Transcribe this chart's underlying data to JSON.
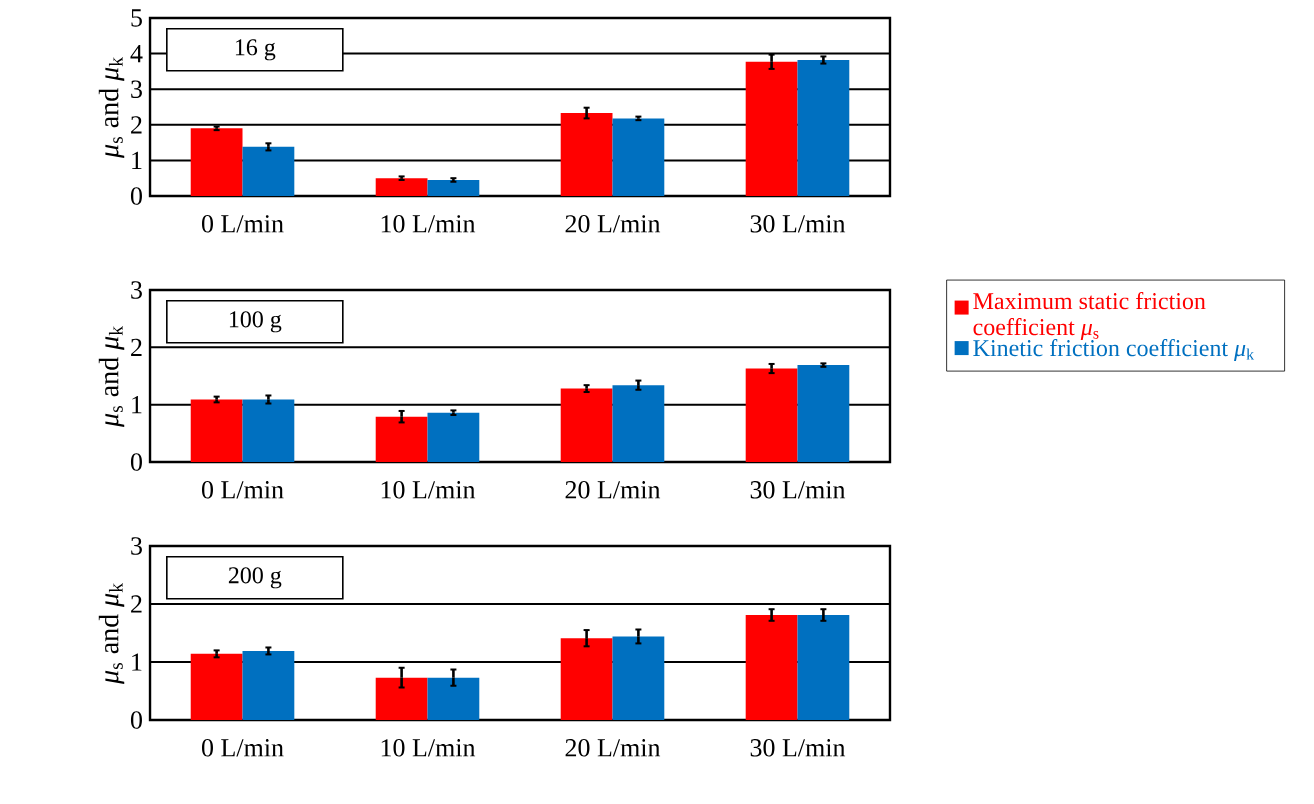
{
  "chart_data": [
    {
      "type": "bar",
      "categories": [
        "0 L/min",
        "10 L/min",
        "20 L/min",
        "30 L/min"
      ],
      "ylabel": "*μ*$_{s}$ and *μ*$_{k}$",
      "ylim": [
        0,
        5
      ],
      "yticks": [
        0,
        1,
        2,
        3,
        4,
        5
      ],
      "grid": "y",
      "annotations": [
        "16 g"
      ],
      "series": [
        {
          "color": "#ff0000",
          "values": [
            1.9,
            0.5,
            2.33,
            3.77
          ],
          "errors": [
            0.05,
            0.05,
            0.15,
            0.2
          ]
        },
        {
          "color": "#0070c0",
          "values": [
            1.38,
            0.45,
            2.18,
            3.82
          ],
          "errors": [
            0.1,
            0.05,
            0.05,
            0.1
          ]
        }
      ]
    },
    {
      "type": "bar",
      "categories": [
        "0 L/min",
        "10 L/min",
        "20 L/min",
        "30 L/min"
      ],
      "ylabel": "*μ*$_{s}$ and *μ*$_{k}$",
      "ylim": [
        0,
        3
      ],
      "yticks": [
        0,
        1,
        2,
        3
      ],
      "grid": "y",
      "annotations": [
        "100 g"
      ],
      "legend": "right",
      "series": [
        {
          "name": "Maximum static friction coefficient *μ*$_{s}$",
          "color": "#ff0000",
          "values": [
            1.09,
            0.79,
            1.28,
            1.63
          ],
          "errors": [
            0.05,
            0.1,
            0.06,
            0.08
          ]
        },
        {
          "name": "Kinetic friction coefficient *μ*$_{k}$",
          "color": "#0070c0",
          "values": [
            1.09,
            0.86,
            1.34,
            1.69
          ],
          "errors": [
            0.07,
            0.04,
            0.08,
            0.03
          ]
        }
      ]
    },
    {
      "type": "bar",
      "categories": [
        "0 L/min",
        "10 L/min",
        "20 L/min",
        "30 L/min"
      ],
      "ylabel": "*μ*$_{s}$ and *μ*$_{k}$",
      "ylim": [
        0,
        3
      ],
      "yticks": [
        0,
        1,
        2,
        3
      ],
      "grid": "y",
      "annotations": [
        "200 g"
      ],
      "series": [
        {
          "color": "#ff0000",
          "values": [
            1.14,
            0.73,
            1.41,
            1.81
          ],
          "errors": [
            0.06,
            0.17,
            0.14,
            0.1
          ]
        },
        {
          "color": "#0070c0",
          "values": [
            1.19,
            0.73,
            1.44,
            1.81
          ],
          "errors": [
            0.06,
            0.14,
            0.12,
            0.1
          ]
        }
      ]
    }
  ]
}
